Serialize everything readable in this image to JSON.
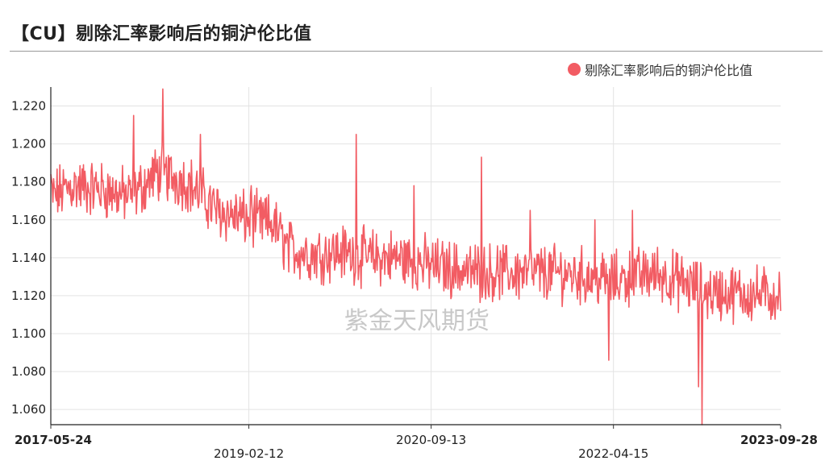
{
  "header": {
    "title": "【CU】剔除汇率影响后的铜沪伦比值"
  },
  "watermark": "紫金天风期货",
  "chart_data": {
    "type": "line",
    "title": "【CU】剔除汇率影响后的铜沪伦比值",
    "xlabel": "",
    "ylabel": "",
    "ylim": [
      1.052,
      1.23
    ],
    "y_ticks": [
      "1.060",
      "1.080",
      "1.100",
      "1.120",
      "1.140",
      "1.160",
      "1.180",
      "1.200",
      "1.220"
    ],
    "x_ticks": [
      {
        "label": "2017-05-24",
        "date": "2017-05-24",
        "bold": true,
        "row": 1
      },
      {
        "label": "2019-02-12",
        "date": "2019-02-12",
        "bold": false,
        "row": 2
      },
      {
        "label": "2020-09-13",
        "date": "2020-09-13",
        "bold": false,
        "row": 1
      },
      {
        "label": "2022-04-15",
        "date": "2022-04-15",
        "bold": false,
        "row": 2
      },
      {
        "label": "2023-09-28",
        "date": "2023-09-28",
        "bold": true,
        "row": 1
      }
    ],
    "grid": true,
    "legend_position": "top-right",
    "series": [
      {
        "name": "剔除汇率影响后的铜沪伦比值",
        "color": "#f25c63",
        "anchors": [
          [
            "2017-05-24",
            1.172
          ],
          [
            "2017-08-01",
            1.178
          ],
          [
            "2017-11-01",
            1.176
          ],
          [
            "2018-02-01",
            1.172
          ],
          [
            "2018-05-01",
            1.185
          ],
          [
            "2018-08-01",
            1.18
          ],
          [
            "2018-11-01",
            1.165
          ],
          [
            "2019-02-12",
            1.16
          ],
          [
            "2019-05-01",
            1.158
          ],
          [
            "2019-06-15",
            1.145
          ],
          [
            "2019-09-01",
            1.142
          ],
          [
            "2019-12-01",
            1.143
          ],
          [
            "2020-03-01",
            1.14
          ],
          [
            "2020-06-01",
            1.14
          ],
          [
            "2020-09-13",
            1.136
          ],
          [
            "2021-01-01",
            1.133
          ],
          [
            "2021-06-01",
            1.132
          ],
          [
            "2021-11-01",
            1.132
          ],
          [
            "2022-04-15",
            1.128
          ],
          [
            "2022-09-01",
            1.132
          ],
          [
            "2023-02-01",
            1.122
          ],
          [
            "2023-09-28",
            1.12
          ]
        ],
        "spikes": [
          [
            "2017-05-24",
            1.184
          ],
          [
            "2018-02-10",
            1.215
          ],
          [
            "2018-05-15",
            1.229
          ],
          [
            "2018-09-10",
            1.205
          ],
          [
            "2019-02-20",
            1.178
          ],
          [
            "2020-01-20",
            1.205
          ],
          [
            "2020-07-20",
            1.178
          ],
          [
            "2021-02-20",
            1.193
          ],
          [
            "2021-07-25",
            1.165
          ],
          [
            "2022-02-15",
            1.16
          ],
          [
            "2022-04-01",
            1.086
          ],
          [
            "2022-06-15",
            1.165
          ],
          [
            "2023-01-22",
            1.052
          ],
          [
            "2023-01-10",
            1.072
          ],
          [
            "2023-09-20",
            1.113
          ]
        ]
      }
    ]
  }
}
